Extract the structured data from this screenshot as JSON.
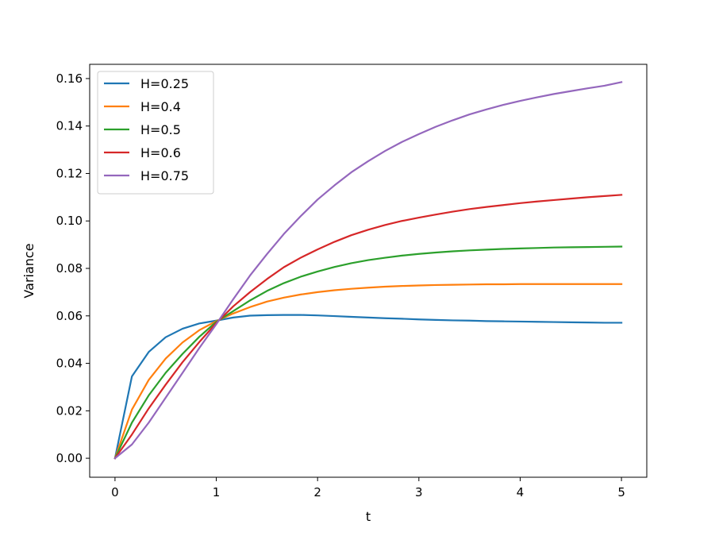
{
  "chart_data": {
    "type": "line",
    "title": "",
    "xlabel": "t",
    "ylabel": "Variance",
    "xlim": [
      -0.25,
      5.25
    ],
    "ylim": [
      -0.008,
      0.166
    ],
    "xticks": [
      0,
      1,
      2,
      3,
      4,
      5
    ],
    "xtick_labels": [
      "0",
      "1",
      "2",
      "3",
      "4",
      "5"
    ],
    "yticks": [
      0.0,
      0.02,
      0.04,
      0.06,
      0.08,
      0.1,
      0.12,
      0.14,
      0.16
    ],
    "ytick_labels": [
      "0.00",
      "0.02",
      "0.04",
      "0.06",
      "0.08",
      "0.10",
      "0.12",
      "0.14",
      "0.16"
    ],
    "grid": false,
    "legend_position": "top-left",
    "x": [
      0,
      0.167,
      0.333,
      0.5,
      0.667,
      0.833,
      1.0,
      1.167,
      1.333,
      1.5,
      1.667,
      1.833,
      2.0,
      2.167,
      2.333,
      2.5,
      2.667,
      2.833,
      3.0,
      3.167,
      3.333,
      3.5,
      3.667,
      3.833,
      4.0,
      4.167,
      4.333,
      4.5,
      4.667,
      4.833,
      5.0
    ],
    "series": [
      {
        "name": "H=0.25",
        "color": "#1f77b4",
        "values": [
          0.0,
          0.0345,
          0.0448,
          0.051,
          0.0546,
          0.0568,
          0.058,
          0.0593,
          0.0601,
          0.0603,
          0.0604,
          0.0604,
          0.0602,
          0.0599,
          0.0596,
          0.0593,
          0.059,
          0.0588,
          0.0585,
          0.0583,
          0.0581,
          0.058,
          0.0578,
          0.0577,
          0.0576,
          0.0575,
          0.0574,
          0.0573,
          0.0572,
          0.0571,
          0.0571
        ]
      },
      {
        "name": "H=0.4",
        "color": "#ff7f0e",
        "values": [
          0.0,
          0.0205,
          0.033,
          0.042,
          0.0488,
          0.054,
          0.0578,
          0.061,
          0.0637,
          0.066,
          0.0677,
          0.069,
          0.07,
          0.0708,
          0.0714,
          0.0719,
          0.0723,
          0.0726,
          0.0728,
          0.073,
          0.0731,
          0.0732,
          0.0733,
          0.0733,
          0.0734,
          0.0734,
          0.0734,
          0.0734,
          0.0734,
          0.0734,
          0.0734
        ]
      },
      {
        "name": "H=0.5",
        "color": "#2ca02c",
        "values": [
          0.0,
          0.015,
          0.0265,
          0.036,
          0.044,
          0.0512,
          0.0575,
          0.062,
          0.0665,
          0.0705,
          0.0738,
          0.0765,
          0.0787,
          0.0806,
          0.0822,
          0.0835,
          0.0845,
          0.0854,
          0.0861,
          0.0867,
          0.0872,
          0.0876,
          0.0879,
          0.0882,
          0.0884,
          0.0886,
          0.0888,
          0.0889,
          0.089,
          0.0891,
          0.0892
        ]
      },
      {
        "name": "H=0.6",
        "color": "#d62728",
        "values": [
          0.0,
          0.01,
          0.021,
          0.031,
          0.0405,
          0.049,
          0.057,
          0.064,
          0.07,
          0.0755,
          0.0805,
          0.0845,
          0.088,
          0.0912,
          0.094,
          0.0963,
          0.0983,
          0.1,
          0.1014,
          0.1027,
          0.1039,
          0.105,
          0.1059,
          0.1067,
          0.1075,
          0.1082,
          0.1088,
          0.1094,
          0.11,
          0.1105,
          0.111
        ]
      },
      {
        "name": "H=0.75",
        "color": "#9467bd",
        "values": [
          0.0,
          0.0058,
          0.015,
          0.0255,
          0.036,
          0.0465,
          0.0565,
          0.067,
          0.077,
          0.086,
          0.0945,
          0.102,
          0.109,
          0.115,
          0.1205,
          0.1252,
          0.1295,
          0.1333,
          0.1366,
          0.1397,
          0.1424,
          0.1449,
          0.147,
          0.1489,
          0.1506,
          0.1521,
          0.1535,
          0.1547,
          0.1559,
          0.157,
          0.1585
        ]
      }
    ]
  }
}
